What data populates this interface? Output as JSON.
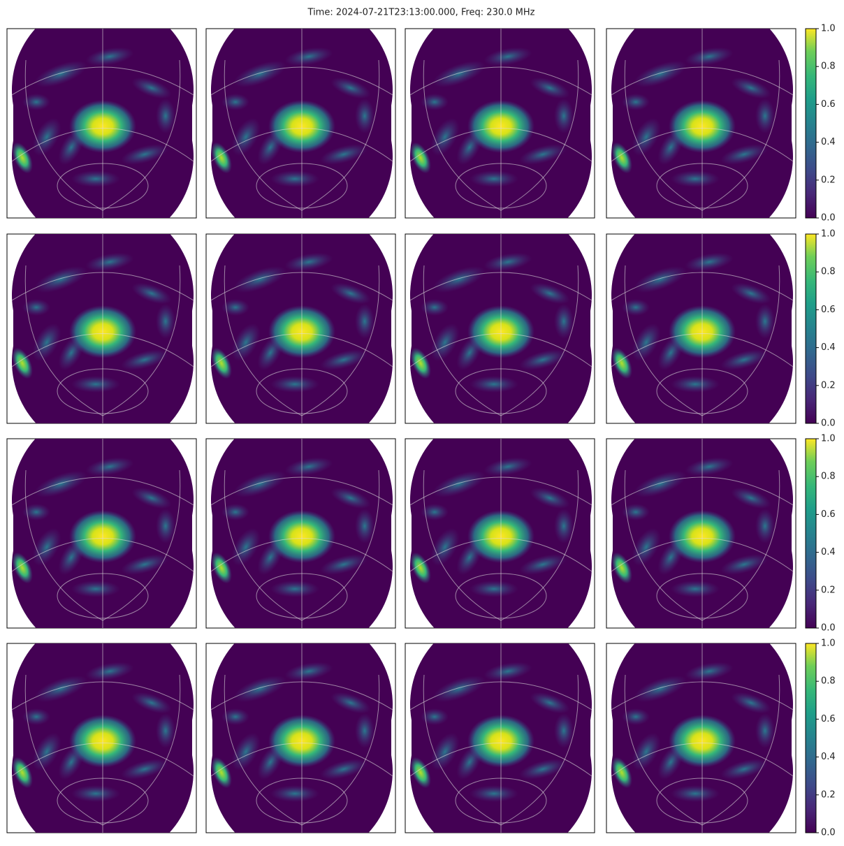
{
  "title": "Time: 2024-07-21T23:13:00.000, Freq: 230.0 MHz",
  "chart_data": [
    {
      "type": "image",
      "colormap": "viridis"
    },
    {
      "type": "image",
      "colormap": "viridis"
    },
    {
      "type": "image",
      "colormap": "viridis"
    },
    {
      "type": "image",
      "colormap": "viridis",
      "colorbar": {
        "ylim": [
          0,
          1
        ],
        "yticks": [
          {
            "value": 0,
            "label": "0.0"
          },
          {
            "value": 0.2,
            "label": "0.2"
          },
          {
            "value": 0.4,
            "label": "0.4"
          },
          {
            "value": 0.6,
            "label": "0.6"
          },
          {
            "value": 0.8,
            "label": "0.8"
          },
          {
            "value": 1,
            "label": "1.0"
          }
        ]
      }
    },
    {
      "type": "image",
      "colormap": "viridis"
    },
    {
      "type": "image",
      "colormap": "viridis"
    },
    {
      "type": "image",
      "colormap": "viridis"
    },
    {
      "type": "image",
      "colormap": "viridis",
      "colorbar": {
        "ylim": [
          0,
          1
        ],
        "yticks": [
          {
            "value": 0,
            "label": "0.0"
          },
          {
            "value": 0.2,
            "label": "0.2"
          },
          {
            "value": 0.4,
            "label": "0.4"
          },
          {
            "value": 0.6,
            "label": "0.6"
          },
          {
            "value": 0.8,
            "label": "0.8"
          },
          {
            "value": 1,
            "label": "1.0"
          }
        ]
      }
    },
    {
      "type": "image",
      "colormap": "viridis"
    },
    {
      "type": "image",
      "colormap": "viridis"
    },
    {
      "type": "image",
      "colormap": "viridis"
    },
    {
      "type": "image",
      "colormap": "viridis",
      "colorbar": {
        "ylim": [
          0,
          1
        ],
        "yticks": [
          {
            "value": 0,
            "label": "0.0"
          },
          {
            "value": 0.2,
            "label": "0.2"
          },
          {
            "value": 0.4,
            "label": "0.4"
          },
          {
            "value": 0.6,
            "label": "0.6"
          },
          {
            "value": 0.8,
            "label": "0.8"
          },
          {
            "value": 1,
            "label": "1.0"
          }
        ]
      }
    },
    {
      "type": "image",
      "colormap": "viridis"
    },
    {
      "type": "image",
      "colormap": "viridis"
    },
    {
      "type": "image",
      "colormap": "viridis"
    },
    {
      "type": "image",
      "colormap": "viridis",
      "colorbar": {
        "ylim": [
          0,
          1
        ],
        "yticks": [
          {
            "value": 0,
            "label": "0.0"
          },
          {
            "value": 0.2,
            "label": "0.2"
          },
          {
            "value": 0.4,
            "label": "0.4"
          },
          {
            "value": 0.6,
            "label": "0.6"
          },
          {
            "value": 0.8,
            "label": "0.8"
          },
          {
            "value": 1,
            "label": "1.0"
          }
        ]
      }
    }
  ]
}
